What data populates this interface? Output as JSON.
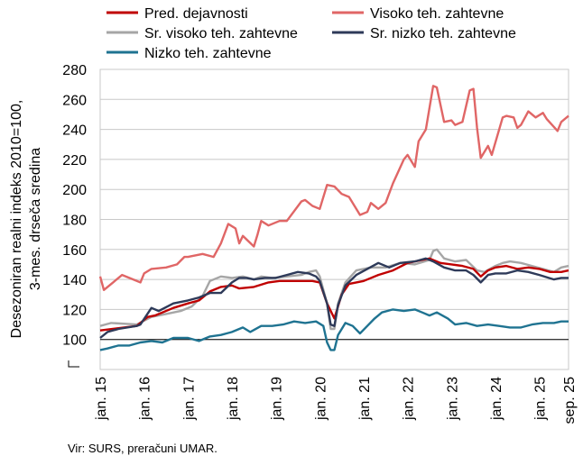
{
  "chart_data": {
    "type": "line",
    "ylabel": [
      "Desezoniran realni indeks 2010=100,",
      "3-mes. drseča sredina"
    ],
    "ylim": [
      80,
      280
    ],
    "yticks": [
      100,
      120,
      140,
      160,
      180,
      200,
      220,
      240,
      260,
      280
    ],
    "xlim": [
      "2015-01",
      "2025-09"
    ],
    "xticks": [
      {
        "date": "2015-01",
        "label": "jan. 15"
      },
      {
        "date": "2016-01",
        "label": "jan. 16"
      },
      {
        "date": "2017-01",
        "label": "jan. 17"
      },
      {
        "date": "2018-01",
        "label": "jan. 18"
      },
      {
        "date": "2019-01",
        "label": "jan. 19"
      },
      {
        "date": "2020-01",
        "label": "jan. 20"
      },
      {
        "date": "2021-01",
        "label": "jan. 21"
      },
      {
        "date": "2022-01",
        "label": "jan. 22"
      },
      {
        "date": "2023-01",
        "label": "jan. 23"
      },
      {
        "date": "2024-01",
        "label": "jan. 24"
      },
      {
        "date": "2025-01",
        "label": "jan. 25"
      },
      {
        "date": "2025-09",
        "label": "sep. 25"
      }
    ],
    "grid": true,
    "reference_line": 100,
    "legend_position": "top",
    "source": "Vir: SURS, preračuni UMAR.",
    "series": [
      {
        "name": "Pred. dejavnosti",
        "color": "#C00000",
        "points": [
          [
            "2015-01",
            106
          ],
          [
            "2015-11",
            109
          ],
          [
            "2016-02",
            115
          ],
          [
            "2016-04",
            116
          ],
          [
            "2016-09",
            121
          ],
          [
            "2017-01",
            124
          ],
          [
            "2017-04",
            126
          ],
          [
            "2017-07",
            132
          ],
          [
            "2017-10",
            135
          ],
          [
            "2018-01",
            136
          ],
          [
            "2018-03",
            134
          ],
          [
            "2018-07",
            135
          ],
          [
            "2018-11",
            138
          ],
          [
            "2019-02",
            139
          ],
          [
            "2019-07",
            139
          ],
          [
            "2019-11",
            139
          ],
          [
            "2020-01",
            138
          ],
          [
            "2020-03",
            124
          ],
          [
            "2020-05",
            114
          ],
          [
            "2020-07",
            130
          ],
          [
            "2020-09",
            137
          ],
          [
            "2021-01",
            139
          ],
          [
            "2021-05",
            143
          ],
          [
            "2021-09",
            146
          ],
          [
            "2022-01",
            151
          ],
          [
            "2022-05",
            153
          ],
          [
            "2022-07",
            154
          ],
          [
            "2022-10",
            151
          ],
          [
            "2023-01",
            150
          ],
          [
            "2023-04",
            149
          ],
          [
            "2023-07",
            147
          ],
          [
            "2023-09",
            142
          ],
          [
            "2023-11",
            146
          ],
          [
            "2024-01",
            148
          ],
          [
            "2024-04",
            149
          ],
          [
            "2024-07",
            147
          ],
          [
            "2024-10",
            148
          ],
          [
            "2025-01",
            147
          ],
          [
            "2025-04",
            145
          ],
          [
            "2025-07",
            145
          ],
          [
            "2025-09",
            146
          ]
        ]
      },
      {
        "name": "Visoko teh. zahtevne",
        "color": "#E06666",
        "points": [
          [
            "2015-01",
            142
          ],
          [
            "2015-02",
            133
          ],
          [
            "2015-07",
            143
          ],
          [
            "2015-12",
            138
          ],
          [
            "2016-01",
            144
          ],
          [
            "2016-03",
            147
          ],
          [
            "2016-07",
            148
          ],
          [
            "2016-10",
            150
          ],
          [
            "2016-12",
            155
          ],
          [
            "2017-01",
            155
          ],
          [
            "2017-05",
            157
          ],
          [
            "2017-08",
            155
          ],
          [
            "2017-10",
            164
          ],
          [
            "2017-12",
            177
          ],
          [
            "2018-02",
            174
          ],
          [
            "2018-03",
            164
          ],
          [
            "2018-04",
            169
          ],
          [
            "2018-07",
            162
          ],
          [
            "2018-08",
            170
          ],
          [
            "2018-09",
            179
          ],
          [
            "2018-11",
            176
          ],
          [
            "2019-02",
            179
          ],
          [
            "2019-04",
            179
          ],
          [
            "2019-08",
            192
          ],
          [
            "2019-09",
            193
          ],
          [
            "2019-11",
            189
          ],
          [
            "2020-01",
            187
          ],
          [
            "2020-03",
            203
          ],
          [
            "2020-05",
            202
          ],
          [
            "2020-07",
            197
          ],
          [
            "2020-09",
            195
          ],
          [
            "2020-12",
            183
          ],
          [
            "2021-02",
            185
          ],
          [
            "2021-03",
            191
          ],
          [
            "2021-05",
            187
          ],
          [
            "2021-07",
            191
          ],
          [
            "2021-09",
            204
          ],
          [
            "2021-12",
            220
          ],
          [
            "2022-01",
            223
          ],
          [
            "2022-03",
            215
          ],
          [
            "2022-04",
            232
          ],
          [
            "2022-06",
            240
          ],
          [
            "2022-08",
            269
          ],
          [
            "2022-09",
            268
          ],
          [
            "2022-11",
            245
          ],
          [
            "2023-01",
            246
          ],
          [
            "2023-02",
            243
          ],
          [
            "2023-04",
            245
          ],
          [
            "2023-06",
            266
          ],
          [
            "2023-07",
            267
          ],
          [
            "2023-08",
            241
          ],
          [
            "2023-09",
            221
          ],
          [
            "2023-11",
            229
          ],
          [
            "2023-12",
            223
          ],
          [
            "2024-03",
            248
          ],
          [
            "2024-04",
            249
          ],
          [
            "2024-06",
            248
          ],
          [
            "2024-07",
            241
          ],
          [
            "2024-08",
            243
          ],
          [
            "2024-10",
            252
          ],
          [
            "2024-12",
            248
          ],
          [
            "2025-02",
            251
          ],
          [
            "2025-03",
            247
          ],
          [
            "2025-06",
            239
          ],
          [
            "2025-07",
            245
          ],
          [
            "2025-09",
            249
          ]
        ]
      },
      {
        "name": "Sr. visoko teh. zahtevne",
        "color": "#A6A6A6",
        "points": [
          [
            "2015-01",
            109
          ],
          [
            "2015-04",
            111
          ],
          [
            "2015-11",
            110
          ],
          [
            "2016-03",
            115
          ],
          [
            "2016-07",
            117
          ],
          [
            "2016-11",
            119
          ],
          [
            "2017-02",
            122
          ],
          [
            "2017-05",
            129
          ],
          [
            "2017-07",
            139
          ],
          [
            "2017-10",
            142
          ],
          [
            "2018-01",
            141
          ],
          [
            "2018-04",
            142
          ],
          [
            "2018-07",
            140
          ],
          [
            "2018-09",
            142
          ],
          [
            "2018-12",
            141
          ],
          [
            "2019-04",
            142
          ],
          [
            "2019-08",
            143
          ],
          [
            "2019-10",
            145
          ],
          [
            "2019-12",
            146
          ],
          [
            "2020-01",
            142
          ],
          [
            "2020-03",
            124
          ],
          [
            "2020-04",
            107
          ],
          [
            "2020-05",
            107
          ],
          [
            "2020-06",
            124
          ],
          [
            "2020-08",
            138
          ],
          [
            "2020-11",
            146
          ],
          [
            "2021-03",
            148
          ],
          [
            "2021-07",
            148
          ],
          [
            "2021-11",
            151
          ],
          [
            "2022-03",
            150
          ],
          [
            "2022-07",
            153
          ],
          [
            "2022-08",
            159
          ],
          [
            "2022-09",
            160
          ],
          [
            "2022-11",
            154
          ],
          [
            "2023-02",
            152
          ],
          [
            "2023-05",
            153
          ],
          [
            "2023-08",
            146
          ],
          [
            "2023-10",
            145
          ],
          [
            "2024-01",
            149
          ],
          [
            "2024-03",
            151
          ],
          [
            "2024-05",
            152
          ],
          [
            "2024-08",
            151
          ],
          [
            "2024-11",
            149
          ],
          [
            "2025-02",
            147
          ],
          [
            "2025-05",
            145
          ],
          [
            "2025-07",
            148
          ],
          [
            "2025-09",
            149
          ]
        ]
      },
      {
        "name": "Sr. nizko teh. zahtevne",
        "color": "#2E3A59",
        "points": [
          [
            "2015-01",
            101
          ],
          [
            "2015-03",
            105
          ],
          [
            "2015-06",
            107
          ],
          [
            "2015-11",
            109
          ],
          [
            "2015-12",
            110
          ],
          [
            "2016-03",
            121
          ],
          [
            "2016-05",
            119
          ],
          [
            "2016-09",
            124
          ],
          [
            "2017-01",
            126
          ],
          [
            "2017-04",
            128
          ],
          [
            "2017-07",
            131
          ],
          [
            "2017-10",
            131
          ],
          [
            "2018-01",
            138
          ],
          [
            "2018-03",
            141
          ],
          [
            "2018-05",
            141
          ],
          [
            "2018-07",
            140
          ],
          [
            "2018-10",
            141
          ],
          [
            "2019-01",
            141
          ],
          [
            "2019-04",
            143
          ],
          [
            "2019-07",
            145
          ],
          [
            "2019-10",
            144
          ],
          [
            "2019-12",
            142
          ],
          [
            "2020-01",
            139
          ],
          [
            "2020-03",
            124
          ],
          [
            "2020-04",
            110
          ],
          [
            "2020-05",
            109
          ],
          [
            "2020-06",
            123
          ],
          [
            "2020-08",
            136
          ],
          [
            "2020-11",
            143
          ],
          [
            "2021-02",
            147
          ],
          [
            "2021-05",
            151
          ],
          [
            "2021-08",
            148
          ],
          [
            "2021-11",
            151
          ],
          [
            "2022-03",
            152
          ],
          [
            "2022-06",
            154
          ],
          [
            "2022-08",
            152
          ],
          [
            "2022-11",
            148
          ],
          [
            "2023-02",
            146
          ],
          [
            "2023-05",
            146
          ],
          [
            "2023-07",
            143
          ],
          [
            "2023-09",
            138
          ],
          [
            "2023-11",
            143
          ],
          [
            "2024-01",
            144
          ],
          [
            "2024-04",
            144
          ],
          [
            "2024-07",
            146
          ],
          [
            "2024-10",
            145
          ],
          [
            "2025-01",
            143
          ],
          [
            "2025-05",
            140
          ],
          [
            "2025-07",
            141
          ],
          [
            "2025-09",
            141
          ]
        ]
      },
      {
        "name": "Nizko teh. zahtevne",
        "color": "#1F7391",
        "points": [
          [
            "2015-01",
            93
          ],
          [
            "2015-03",
            94
          ],
          [
            "2015-06",
            96
          ],
          [
            "2015-09",
            96
          ],
          [
            "2015-12",
            98
          ],
          [
            "2016-03",
            99
          ],
          [
            "2016-06",
            98
          ],
          [
            "2016-09",
            101
          ],
          [
            "2017-01",
            101
          ],
          [
            "2017-04",
            99
          ],
          [
            "2017-07",
            102
          ],
          [
            "2017-10",
            103
          ],
          [
            "2018-01",
            105
          ],
          [
            "2018-04",
            108
          ],
          [
            "2018-06",
            105
          ],
          [
            "2018-09",
            109
          ],
          [
            "2018-12",
            109
          ],
          [
            "2019-03",
            110
          ],
          [
            "2019-06",
            112
          ],
          [
            "2019-09",
            111
          ],
          [
            "2019-12",
            112
          ],
          [
            "2020-02",
            109
          ],
          [
            "2020-03",
            98
          ],
          [
            "2020-04",
            93
          ],
          [
            "2020-05",
            93
          ],
          [
            "2020-06",
            103
          ],
          [
            "2020-08",
            111
          ],
          [
            "2020-10",
            109
          ],
          [
            "2020-12",
            104
          ],
          [
            "2021-02",
            109
          ],
          [
            "2021-04",
            114
          ],
          [
            "2021-06",
            118
          ],
          [
            "2021-09",
            120
          ],
          [
            "2021-12",
            119
          ],
          [
            "2022-03",
            120
          ],
          [
            "2022-05",
            118
          ],
          [
            "2022-07",
            116
          ],
          [
            "2022-09",
            118
          ],
          [
            "2022-12",
            114
          ],
          [
            "2023-02",
            110
          ],
          [
            "2023-05",
            111
          ],
          [
            "2023-08",
            109
          ],
          [
            "2023-11",
            110
          ],
          [
            "2024-02",
            109
          ],
          [
            "2024-05",
            108
          ],
          [
            "2024-08",
            108
          ],
          [
            "2024-11",
            110
          ],
          [
            "2025-02",
            111
          ],
          [
            "2025-05",
            111
          ],
          [
            "2025-07",
            112
          ],
          [
            "2025-09",
            112
          ]
        ]
      }
    ]
  }
}
